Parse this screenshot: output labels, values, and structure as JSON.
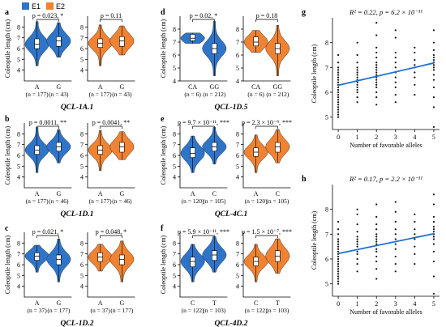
{
  "legend": [
    {
      "label": "E1",
      "color": "#2E75C9"
    },
    {
      "label": "E2",
      "color": "#F08232"
    }
  ],
  "y_axis_label": "Coleoptile length (cm)",
  "scatter_x_label": "Number of favorable alleles",
  "chart_data": [
    {
      "panel": "a",
      "type": "violin",
      "qtl": "QCL-1A.1",
      "ylim": [
        3,
        9
      ],
      "yticks": [
        4,
        5,
        6,
        7,
        8
      ],
      "groups": [
        {
          "env": "E1",
          "stat": "p = 0.023, *",
          "categories": [
            "A",
            "G"
          ],
          "n": [
            "(n = 177)",
            "(n = 43)"
          ],
          "medians": [
            6.4,
            6.7
          ],
          "q1": [
            6.0,
            6.2
          ],
          "q3": [
            6.9,
            7.1
          ],
          "min": [
            4.4,
            5.2
          ],
          "max": [
            8.5,
            8.4
          ]
        },
        {
          "env": "E2",
          "stat": "p = 0.11",
          "categories": [
            "A",
            "G"
          ],
          "n": [
            "(n = 177)",
            "(n = 43)"
          ],
          "medians": [
            6.5,
            6.7
          ],
          "q1": [
            6.1,
            6.2
          ],
          "q3": [
            6.9,
            7.1
          ],
          "min": [
            4.4,
            5.4
          ],
          "max": [
            8.2,
            8.1
          ]
        }
      ]
    },
    {
      "panel": "b",
      "type": "violin",
      "qtl": "QCL-1D.1",
      "ylim": [
        3,
        9
      ],
      "yticks": [
        4,
        5,
        6,
        7,
        8
      ],
      "groups": [
        {
          "env": "E1",
          "stat": "p = 0.0011, **",
          "categories": [
            "A",
            "G"
          ],
          "n": [
            "(n = 177)",
            "(n = 46)"
          ],
          "medians": [
            6.5,
            6.8
          ],
          "q1": [
            6.1,
            6.4
          ],
          "q3": [
            6.9,
            7.2
          ],
          "min": [
            4.4,
            5.3
          ],
          "max": [
            8.6,
            8.4
          ]
        },
        {
          "env": "E2",
          "stat": "p = 0.0041, **",
          "categories": [
            "A",
            "G"
          ],
          "n": [
            "(n = 177)",
            "(n = 46)"
          ],
          "medians": [
            6.5,
            6.8
          ],
          "q1": [
            6.1,
            6.3
          ],
          "q3": [
            6.9,
            7.2
          ],
          "min": [
            4.6,
            5.6
          ],
          "max": [
            8.3,
            8.2
          ]
        }
      ]
    },
    {
      "panel": "c",
      "type": "violin",
      "qtl": "QCL-1D.2",
      "ylim": [
        3,
        9
      ],
      "yticks": [
        4,
        5,
        6,
        7,
        8
      ],
      "groups": [
        {
          "env": "E1",
          "stat": "p = 0.021, *",
          "categories": [
            "A",
            "G"
          ],
          "n": [
            "(n = 37)",
            "(n = 177)"
          ],
          "medians": [
            6.8,
            6.5
          ],
          "q1": [
            6.4,
            6.0
          ],
          "q3": [
            7.1,
            6.9
          ],
          "min": [
            5.3,
            4.4
          ],
          "max": [
            7.8,
            8.4
          ]
        },
        {
          "env": "E2",
          "stat": "p = 0.048, *",
          "categories": [
            "A",
            "G"
          ],
          "n": [
            "(n = 37)",
            "(n = 177)"
          ],
          "medians": [
            6.7,
            6.5
          ],
          "q1": [
            6.3,
            6.0
          ],
          "q3": [
            7.1,
            6.9
          ],
          "min": [
            5.4,
            4.4
          ],
          "max": [
            7.9,
            8.2
          ]
        }
      ]
    },
    {
      "panel": "d",
      "type": "violin",
      "qtl": "QCL-1D.5",
      "ylim": [
        4,
        9
      ],
      "yticks": [
        4,
        5,
        6,
        7,
        8
      ],
      "groups": [
        {
          "env": "E1",
          "stat": "p = 0.02, *",
          "categories": [
            "CA",
            "GG"
          ],
          "n": [
            "(n = 6)",
            "(n = 212)"
          ],
          "medians": [
            7.3,
            6.5
          ],
          "q1": [
            7.1,
            6.1
          ],
          "q3": [
            7.6,
            6.9
          ],
          "min": [
            6.9,
            4.4
          ],
          "max": [
            7.7,
            8.6
          ]
        },
        {
          "env": "E2",
          "stat": "p = 0.18",
          "categories": [
            "CA",
            "GG"
          ],
          "n": [
            "(n = 6)",
            "(n = 212)"
          ],
          "medians": [
            7.0,
            6.5
          ],
          "q1": [
            6.7,
            6.1
          ],
          "q3": [
            7.4,
            6.9
          ],
          "min": [
            6.2,
            4.4
          ],
          "max": [
            7.9,
            8.3
          ]
        }
      ]
    },
    {
      "panel": "e",
      "type": "violin",
      "qtl": "QCL-4C.1",
      "ylim": [
        3,
        9
      ],
      "yticks": [
        4,
        5,
        6,
        7,
        8
      ],
      "groups": [
        {
          "env": "E1",
          "stat": "p = 9.7 × 10⁻¹¹, ***",
          "categories": [
            "A",
            "C"
          ],
          "n": [
            "(n = 120)",
            "(n = 105)"
          ],
          "medians": [
            6.2,
            6.8
          ],
          "q1": [
            5.8,
            6.4
          ],
          "q3": [
            6.7,
            7.2
          ],
          "min": [
            4.4,
            5.2
          ],
          "max": [
            7.8,
            8.6
          ]
        },
        {
          "env": "E2",
          "stat": "p = 2.3 × 10⁻⁹, ***",
          "categories": [
            "A",
            "C"
          ],
          "n": [
            "(n = 120)",
            "(n = 105)"
          ],
          "medians": [
            6.3,
            6.8
          ],
          "q1": [
            5.9,
            6.3
          ],
          "q3": [
            6.7,
            7.2
          ],
          "min": [
            4.4,
            5.3
          ],
          "max": [
            7.9,
            8.4
          ]
        }
      ]
    },
    {
      "panel": "f",
      "type": "violin",
      "qtl": "QCL-4D.2",
      "ylim": [
        3,
        9
      ],
      "yticks": [
        4,
        5,
        6,
        7,
        8
      ],
      "groups": [
        {
          "env": "E1",
          "stat": "p = 5.9 × 10⁻¹¹, ***",
          "categories": [
            "C",
            "T"
          ],
          "n": [
            "(n = 122)",
            "(n = 103)"
          ],
          "medians": [
            6.3,
            6.9
          ],
          "q1": [
            5.8,
            6.4
          ],
          "q3": [
            6.7,
            7.3
          ],
          "min": [
            4.4,
            5.3
          ],
          "max": [
            7.9,
            8.6
          ]
        },
        {
          "env": "E2",
          "stat": "p = 1.5 × 10⁻⁷, ***",
          "categories": [
            "C",
            "T"
          ],
          "n": [
            "(n = 122)",
            "(n = 103)"
          ],
          "medians": [
            6.3,
            6.8
          ],
          "q1": [
            5.9,
            6.3
          ],
          "q3": [
            6.7,
            7.3
          ],
          "min": [
            4.4,
            5.2
          ],
          "max": [
            7.9,
            8.4
          ]
        }
      ]
    },
    {
      "panel": "g",
      "type": "scatter",
      "stat": "R² = 0.22, p = 6.2 × 10⁻¹¹",
      "xlim": [
        -0.3,
        5.3
      ],
      "ylim": [
        4.5,
        9
      ],
      "xticks": [
        0,
        1,
        2,
        3,
        4,
        5
      ],
      "yticks": [
        5,
        6,
        7,
        8
      ],
      "fit": {
        "intercept": 6.28,
        "slope": 0.18
      },
      "points": [
        [
          0,
          5.0
        ],
        [
          0,
          5.1
        ],
        [
          0,
          5.2
        ],
        [
          0,
          5.3
        ],
        [
          0,
          5.4
        ],
        [
          0,
          5.5
        ],
        [
          0,
          5.6
        ],
        [
          0,
          5.7
        ],
        [
          0,
          5.8
        ],
        [
          0,
          5.9
        ],
        [
          0,
          6.0
        ],
        [
          0,
          6.1
        ],
        [
          0,
          6.2
        ],
        [
          0,
          6.3
        ],
        [
          0,
          6.4
        ],
        [
          0,
          6.5
        ],
        [
          0,
          6.6
        ],
        [
          0,
          6.7
        ],
        [
          0,
          6.8
        ],
        [
          0,
          6.9
        ],
        [
          0,
          7.0
        ],
        [
          0,
          7.2
        ],
        [
          0,
          7.5
        ],
        [
          1,
          5.6
        ],
        [
          1,
          5.8
        ],
        [
          1,
          6.0
        ],
        [
          1,
          6.1
        ],
        [
          1,
          6.2
        ],
        [
          1,
          6.3
        ],
        [
          1,
          6.4
        ],
        [
          1,
          6.5
        ],
        [
          1,
          6.6
        ],
        [
          1,
          6.7
        ],
        [
          1,
          6.8
        ],
        [
          1,
          6.9
        ],
        [
          1,
          7.0
        ],
        [
          1,
          7.2
        ],
        [
          1,
          7.5
        ],
        [
          1,
          8.0
        ],
        [
          2,
          5.5
        ],
        [
          2,
          5.8
        ],
        [
          2,
          6.0
        ],
        [
          2,
          6.2
        ],
        [
          2,
          6.3
        ],
        [
          2,
          6.4
        ],
        [
          2,
          6.5
        ],
        [
          2,
          6.6
        ],
        [
          2,
          6.7
        ],
        [
          2,
          6.8
        ],
        [
          2,
          6.9
        ],
        [
          2,
          7.0
        ],
        [
          2,
          7.1
        ],
        [
          2,
          7.2
        ],
        [
          2,
          7.4
        ],
        [
          2,
          7.6
        ],
        [
          2,
          7.8
        ],
        [
          2,
          8.3
        ],
        [
          2,
          8.8
        ],
        [
          3,
          5.6
        ],
        [
          3,
          5.9
        ],
        [
          3,
          6.2
        ],
        [
          3,
          6.4
        ],
        [
          3,
          6.6
        ],
        [
          3,
          6.8
        ],
        [
          3,
          7.0
        ],
        [
          3,
          7.2
        ],
        [
          3,
          7.4
        ],
        [
          3,
          7.6
        ],
        [
          3,
          8.2
        ],
        [
          3,
          8.5
        ],
        [
          4,
          5.9
        ],
        [
          4,
          6.3
        ],
        [
          4,
          6.6
        ],
        [
          4,
          6.8
        ],
        [
          4,
          7.0
        ],
        [
          4,
          7.1
        ],
        [
          4,
          7.3
        ],
        [
          4,
          7.6
        ],
        [
          4,
          7.8
        ],
        [
          5,
          4.6
        ],
        [
          5,
          5.4
        ],
        [
          5,
          5.8
        ],
        [
          5,
          6.2
        ],
        [
          5,
          6.5
        ],
        [
          5,
          6.7
        ],
        [
          5,
          6.9
        ],
        [
          5,
          7.0
        ],
        [
          5,
          7.1
        ],
        [
          5,
          7.2
        ],
        [
          5,
          7.3
        ],
        [
          5,
          7.4
        ],
        [
          5,
          7.5
        ],
        [
          5,
          7.7
        ],
        [
          5,
          8.0
        ],
        [
          5,
          8.5
        ]
      ]
    },
    {
      "panel": "h",
      "type": "scatter",
      "stat": "R² = 0.17, p = 2.2 × 10⁻¹¹",
      "xlim": [
        -0.3,
        5.3
      ],
      "ylim": [
        4.5,
        9
      ],
      "xticks": [
        0,
        1,
        2,
        3,
        4,
        5
      ],
      "yticks": [
        5,
        6,
        7,
        8
      ],
      "fit": {
        "intercept": 6.22,
        "slope": 0.16
      },
      "points": [
        [
          0,
          5.0
        ],
        [
          0,
          5.1
        ],
        [
          0,
          5.2
        ],
        [
          0,
          5.3
        ],
        [
          0,
          5.4
        ],
        [
          0,
          5.5
        ],
        [
          0,
          5.6
        ],
        [
          0,
          5.7
        ],
        [
          0,
          5.8
        ],
        [
          0,
          5.9
        ],
        [
          0,
          6.0
        ],
        [
          0,
          6.1
        ],
        [
          0,
          6.2
        ],
        [
          0,
          6.3
        ],
        [
          0,
          6.4
        ],
        [
          0,
          6.5
        ],
        [
          0,
          6.6
        ],
        [
          0,
          6.7
        ],
        [
          0,
          6.8
        ],
        [
          0,
          7.0
        ],
        [
          0,
          7.2
        ],
        [
          0,
          7.5
        ],
        [
          1,
          5.5
        ],
        [
          1,
          5.8
        ],
        [
          1,
          6.0
        ],
        [
          1,
          6.2
        ],
        [
          1,
          6.3
        ],
        [
          1,
          6.5
        ],
        [
          1,
          6.6
        ],
        [
          1,
          6.7
        ],
        [
          1,
          6.8
        ],
        [
          1,
          6.9
        ],
        [
          1,
          7.1
        ],
        [
          1,
          7.4
        ],
        [
          1,
          7.8
        ],
        [
          1,
          8.0
        ],
        [
          2,
          5.2
        ],
        [
          2,
          5.6
        ],
        [
          2,
          5.9
        ],
        [
          2,
          6.1
        ],
        [
          2,
          6.3
        ],
        [
          2,
          6.4
        ],
        [
          2,
          6.6
        ],
        [
          2,
          6.7
        ],
        [
          2,
          6.8
        ],
        [
          2,
          6.9
        ],
        [
          2,
          7.0
        ],
        [
          2,
          7.2
        ],
        [
          2,
          7.4
        ],
        [
          2,
          7.7
        ],
        [
          2,
          8.2
        ],
        [
          3,
          5.5
        ],
        [
          3,
          5.8
        ],
        [
          3,
          6.1
        ],
        [
          3,
          6.4
        ],
        [
          3,
          6.6
        ],
        [
          3,
          6.8
        ],
        [
          3,
          7.0
        ],
        [
          3,
          7.2
        ],
        [
          3,
          7.5
        ],
        [
          3,
          7.9
        ],
        [
          3,
          8.3
        ],
        [
          4,
          5.8
        ],
        [
          4,
          6.2
        ],
        [
          4,
          6.5
        ],
        [
          4,
          6.8
        ],
        [
          4,
          7.0
        ],
        [
          4,
          7.2
        ],
        [
          4,
          7.5
        ],
        [
          4,
          7.8
        ],
        [
          5,
          4.6
        ],
        [
          5,
          5.3
        ],
        [
          5,
          5.9
        ],
        [
          5,
          6.3
        ],
        [
          5,
          6.6
        ],
        [
          5,
          6.8
        ],
        [
          5,
          6.9
        ],
        [
          5,
          7.0
        ],
        [
          5,
          7.1
        ],
        [
          5,
          7.2
        ],
        [
          5,
          7.3
        ],
        [
          5,
          7.5
        ],
        [
          5,
          7.7
        ],
        [
          5,
          8.2
        ],
        [
          5,
          8.6
        ]
      ]
    }
  ]
}
